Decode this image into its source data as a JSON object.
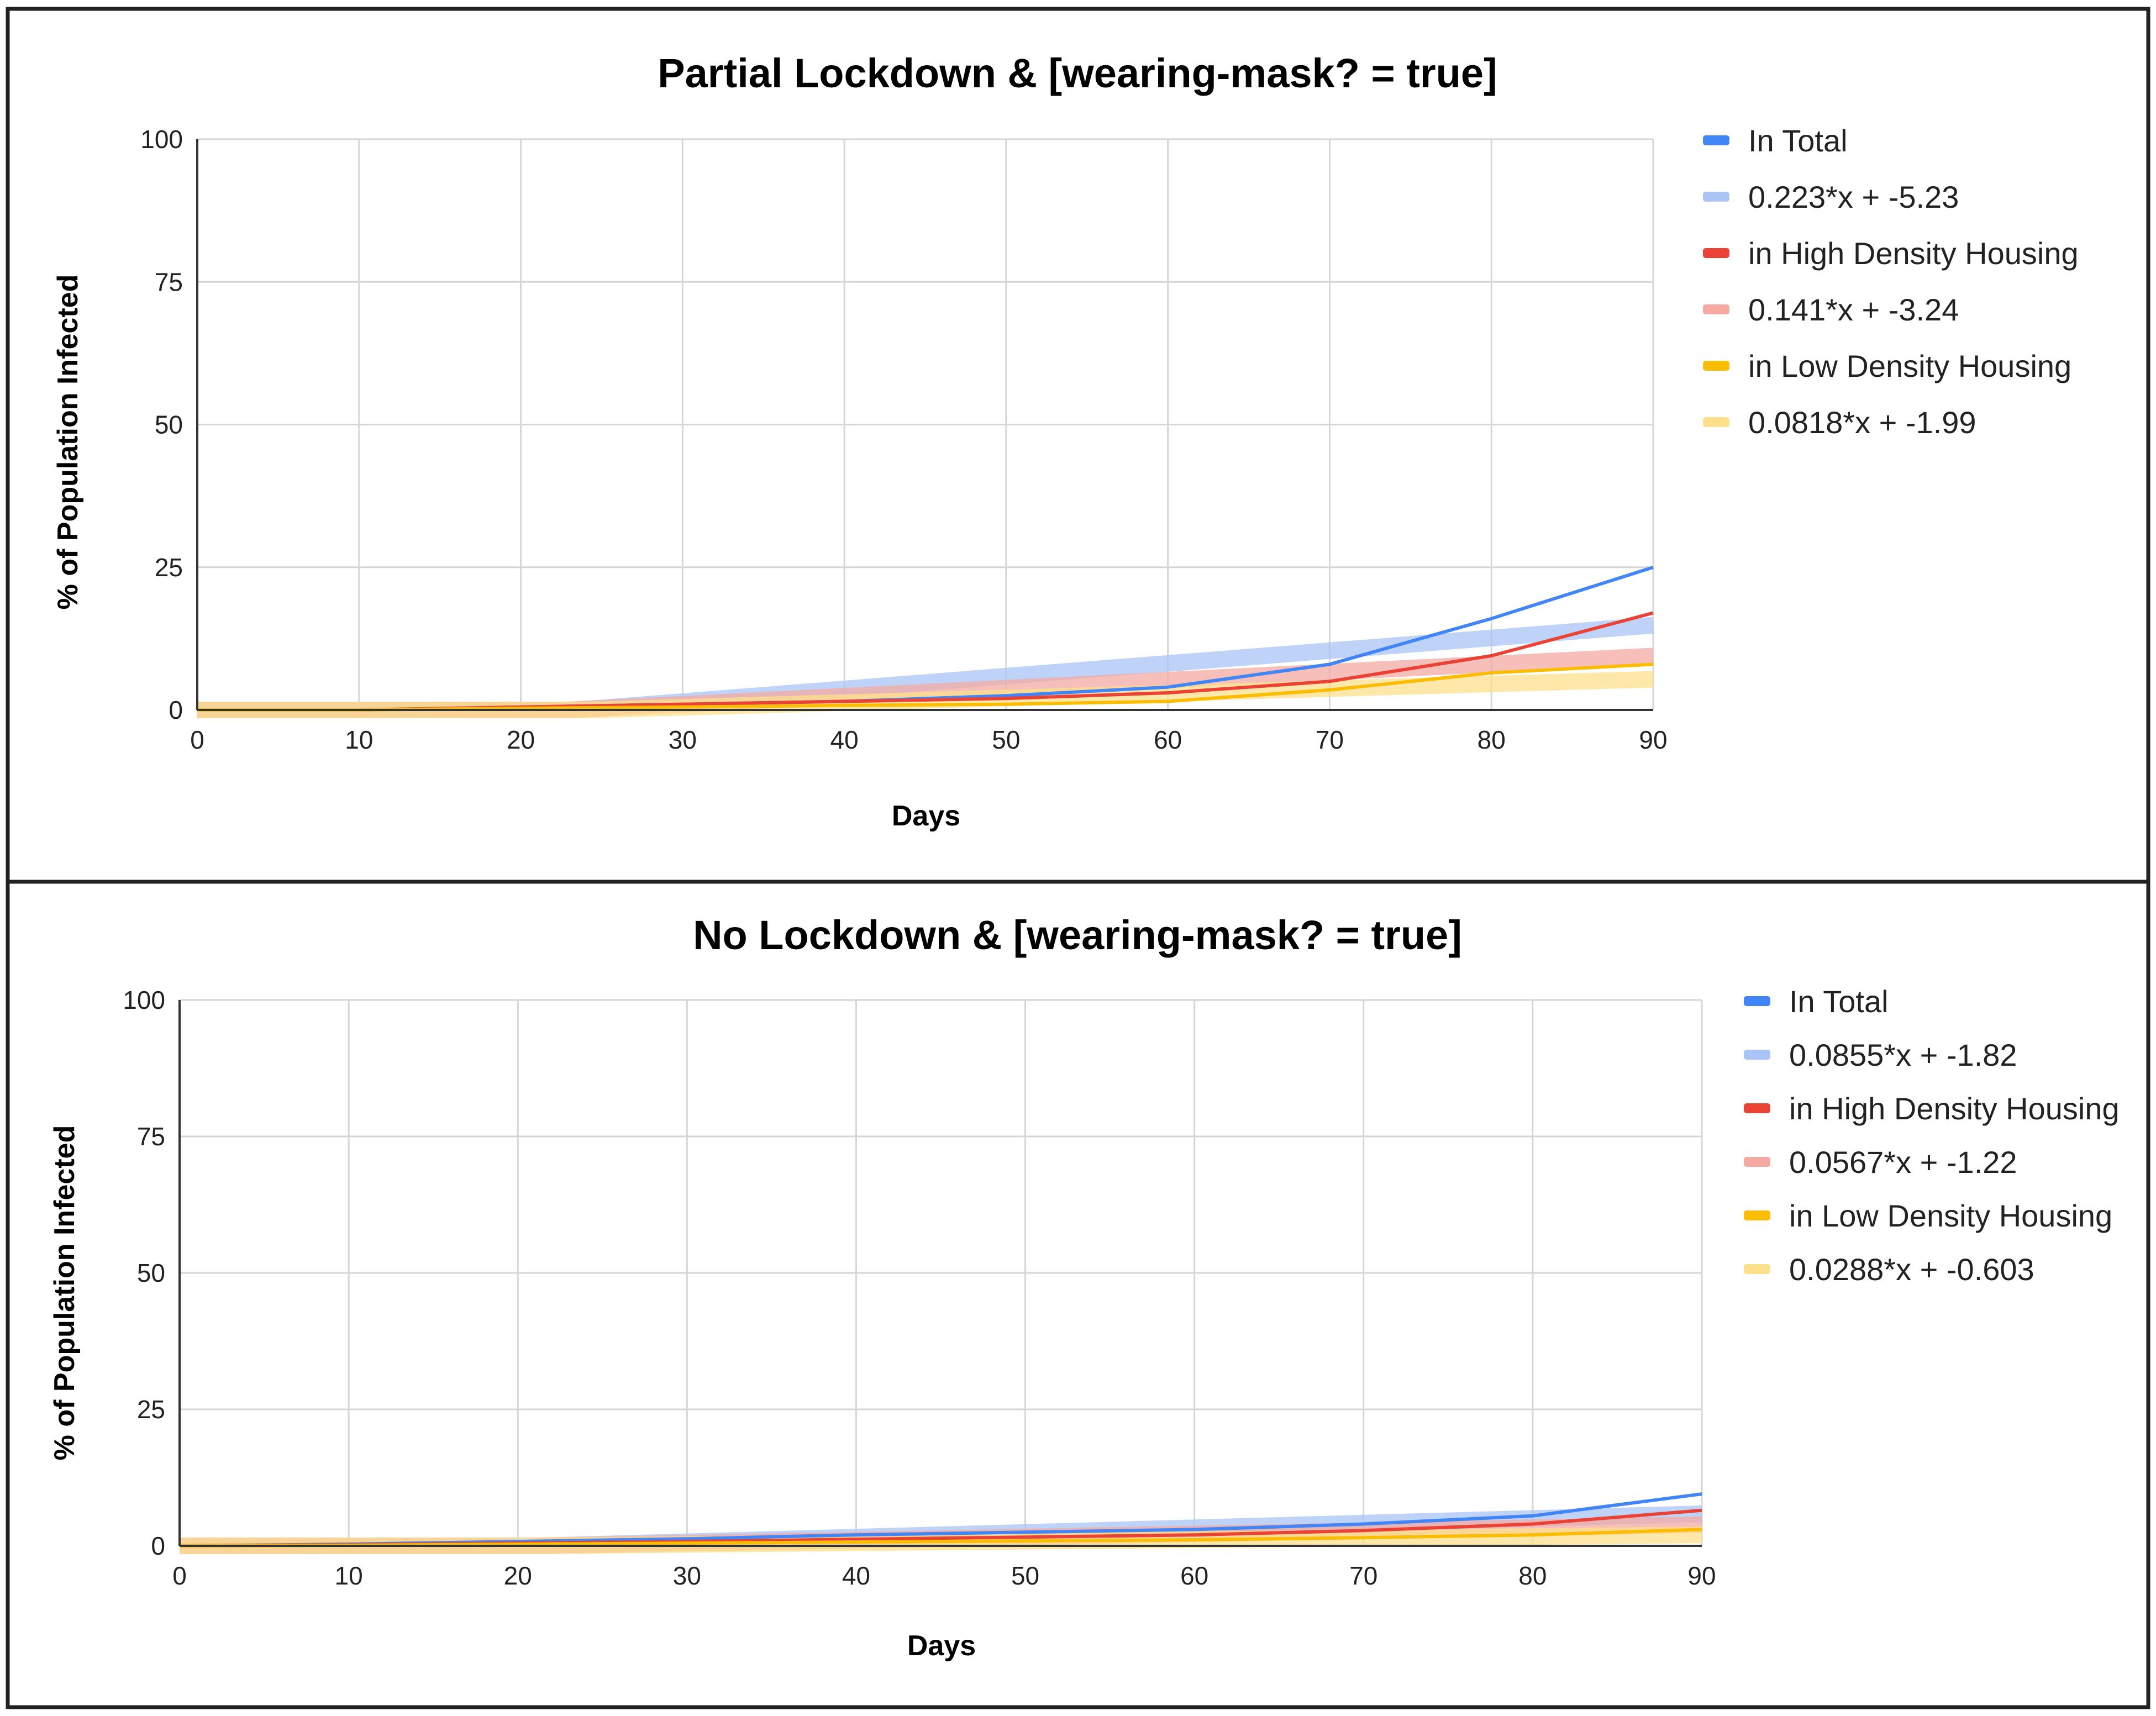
{
  "chart_data": [
    {
      "type": "line",
      "title": "Partial Lockdown & [wearing-mask? = true]",
      "xlabel": "Days",
      "ylabel": "% of Population Infected",
      "xlim": [
        0,
        90
      ],
      "ylim": [
        0,
        100
      ],
      "x_ticks": [
        "0",
        "10",
        "20",
        "30",
        "40",
        "50",
        "60",
        "70",
        "80",
        "90"
      ],
      "y_ticks": [
        "0",
        "25",
        "50",
        "75",
        "100"
      ],
      "grid": true,
      "legend_position": "right",
      "series": [
        {
          "name": "In Total",
          "kind": "line",
          "color": "#4285f4",
          "x": [
            0,
            10,
            20,
            30,
            40,
            50,
            60,
            70,
            80,
            90
          ],
          "values": [
            0,
            0,
            0.5,
            1,
            1.5,
            2.5,
            4,
            8,
            16,
            25
          ]
        },
        {
          "name": "0.223*x + -5.23",
          "kind": "trend",
          "color": "#a9c4f5",
          "slope": 0.223,
          "intercept": -5.23
        },
        {
          "name": "in High Density Housing",
          "kind": "line",
          "color": "#ea4335",
          "x": [
            0,
            10,
            20,
            30,
            40,
            50,
            60,
            70,
            80,
            90
          ],
          "values": [
            0,
            0,
            0.5,
            1,
            1.5,
            2,
            3,
            5,
            9.5,
            17
          ]
        },
        {
          "name": "0.141*x + -3.24",
          "kind": "trend",
          "color": "#f4a9a2",
          "slope": 0.141,
          "intercept": -3.24
        },
        {
          "name": "in Low Density Housing",
          "kind": "line",
          "color": "#fbbc04",
          "x": [
            0,
            10,
            20,
            30,
            40,
            50,
            60,
            70,
            80,
            90
          ],
          "values": [
            0,
            0,
            0.3,
            0.5,
            0.8,
            1,
            1.5,
            3.5,
            6.5,
            8
          ]
        },
        {
          "name": "0.0818*x + -1.99",
          "kind": "trend",
          "color": "#fde08c",
          "slope": 0.0818,
          "intercept": -1.99
        }
      ]
    },
    {
      "type": "line",
      "title": "No Lockdown & [wearing-mask? = true]",
      "xlabel": "Days",
      "ylabel": "% of Population Infected",
      "xlim": [
        0,
        90
      ],
      "ylim": [
        0,
        100
      ],
      "x_ticks": [
        "0",
        "10",
        "20",
        "30",
        "40",
        "50",
        "60",
        "70",
        "80",
        "90"
      ],
      "y_ticks": [
        "0",
        "25",
        "50",
        "75",
        "100"
      ],
      "grid": true,
      "legend_position": "right",
      "series": [
        {
          "name": "In Total",
          "kind": "line",
          "color": "#4285f4",
          "x": [
            0,
            10,
            20,
            30,
            40,
            50,
            60,
            70,
            80,
            90
          ],
          "values": [
            0,
            0.3,
            0.8,
            1.3,
            2,
            2.5,
            3,
            4,
            5.5,
            9.5
          ]
        },
        {
          "name": "0.0855*x + -1.82",
          "kind": "trend",
          "color": "#a9c4f5",
          "slope": 0.0855,
          "intercept": -1.82
        },
        {
          "name": "in High Density Housing",
          "kind": "line",
          "color": "#ea4335",
          "x": [
            0,
            10,
            20,
            30,
            40,
            50,
            60,
            70,
            80,
            90
          ],
          "values": [
            0,
            0.2,
            0.5,
            0.8,
            1.2,
            1.6,
            2,
            2.8,
            4,
            6.5
          ]
        },
        {
          "name": "0.0567*x + -1.22",
          "kind": "trend",
          "color": "#f4a9a2",
          "slope": 0.0567,
          "intercept": -1.22
        },
        {
          "name": "in Low Density Housing",
          "kind": "line",
          "color": "#fbbc04",
          "x": [
            0,
            10,
            20,
            30,
            40,
            50,
            60,
            70,
            80,
            90
          ],
          "values": [
            0,
            0.1,
            0.3,
            0.5,
            0.7,
            0.9,
            1.1,
            1.5,
            2,
            3
          ]
        },
        {
          "name": "0.0288*x + -0.603",
          "kind": "trend",
          "color": "#fde08c",
          "slope": 0.0288,
          "intercept": -0.603
        }
      ]
    }
  ]
}
